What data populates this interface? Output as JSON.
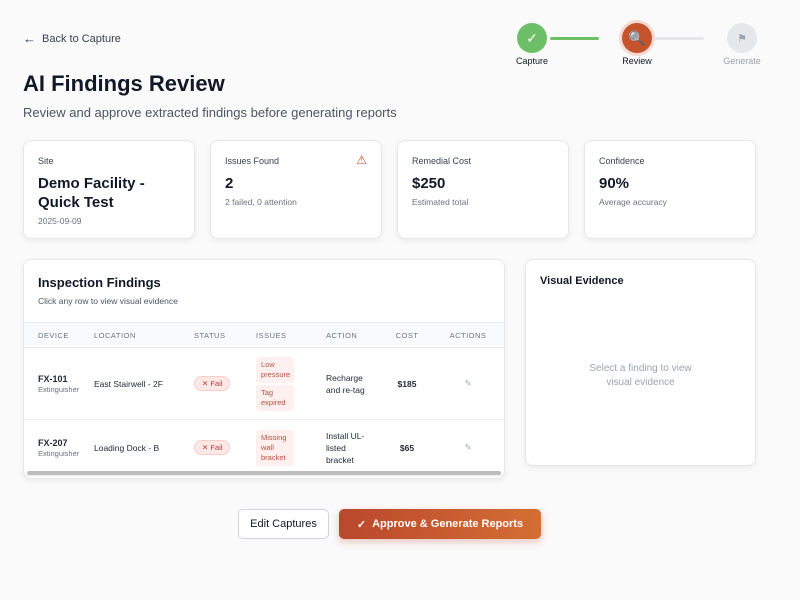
{
  "nav": {
    "back_label": "Back to Capture"
  },
  "stepper": {
    "steps": [
      {
        "label": "Capture",
        "state": "complete",
        "icon": "check-icon"
      },
      {
        "label": "Review",
        "state": "active",
        "icon": "search-icon"
      },
      {
        "label": "Generate",
        "state": "pending",
        "icon": "flag-icon"
      }
    ],
    "colors": {
      "complete": "#6dbf67",
      "active": "#c4532e",
      "pending": "#e5e7eb"
    }
  },
  "header": {
    "title": "AI Findings Review",
    "subtitle": "Review and approve extracted findings before generating reports"
  },
  "stats": [
    {
      "label": "Site",
      "value": "Demo Facility - Quick Test",
      "sub": "2025-09-09"
    },
    {
      "label": "Issues Found",
      "value": "2",
      "sub": "2 failed, 0 attention",
      "icon": "warning-icon"
    },
    {
      "label": "Remedial Cost",
      "value": "$250",
      "sub": "Estimated total"
    },
    {
      "label": "Confidence",
      "value": "90%",
      "sub": "Average accuracy"
    }
  ],
  "findings": {
    "title": "Inspection Findings",
    "hint": "Click any row to view visual evidence",
    "columns": [
      "DEVICE",
      "LOCATION",
      "STATUS",
      "ISSUES",
      "ACTION",
      "COST",
      "ACTIONS"
    ],
    "rows": [
      {
        "device": "FX-101",
        "type": "Extinguisher",
        "location": "East Stairwell - 2F",
        "status": "Fail",
        "issues": [
          "Low pressure",
          "Tag expired"
        ],
        "action": "Recharge and re-tag",
        "cost": "$185"
      },
      {
        "device": "FX-207",
        "type": "Extinguisher",
        "location": "Loading Dock - B",
        "status": "Fail",
        "issues": [
          "Missing wall bracket"
        ],
        "action": "Install UL-listed bracket",
        "cost": "$65"
      }
    ]
  },
  "evidence": {
    "title": "Visual Evidence",
    "placeholder": "Select a finding to view visual evidence"
  },
  "buttons": {
    "edit": "Edit Captures",
    "approve": "Approve & Generate Reports"
  }
}
